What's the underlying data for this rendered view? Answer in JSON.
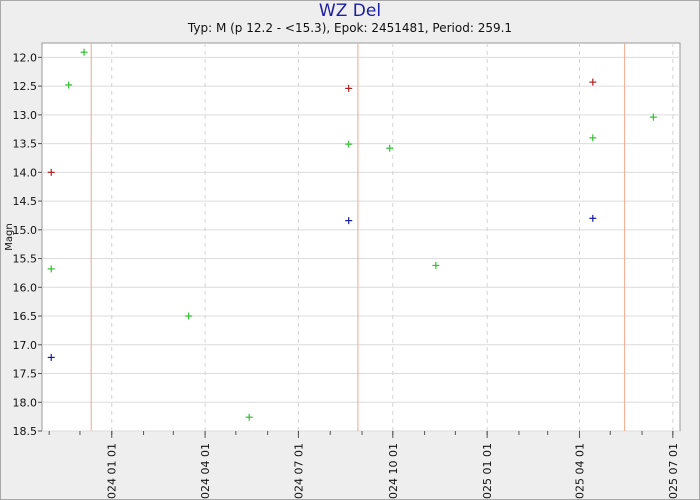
{
  "chart_data": {
    "type": "scatter",
    "title": "WZ Del",
    "subtitle": "Typ: M (p 12.2 - <15.3), Epok: 2451481, Period: 259.1",
    "ylabel": "Magn",
    "xlabel": "",
    "y_inverted": true,
    "ylim": [
      11.75,
      18.5
    ],
    "xlim": [
      "2023-10-25",
      "2025-07-08"
    ],
    "y_ticks": [
      "12.0",
      "12.5",
      "13.0",
      "13.5",
      "14.0",
      "14.5",
      "15.0",
      "15.5",
      "16.0",
      "16.5",
      "17.0",
      "17.5",
      "18.0",
      "18.5"
    ],
    "x_ticks": [
      {
        "date": "2024-01-01",
        "label": "2024 01 01"
      },
      {
        "date": "2024-04-01",
        "label": "2024 04 01"
      },
      {
        "date": "2024-07-01",
        "label": "2024 07 01"
      },
      {
        "date": "2024-10-01",
        "label": "2024 10 01"
      },
      {
        "date": "2025-01-01",
        "label": "2025 01 01"
      },
      {
        "date": "2025-04-01",
        "label": "2025 04 01"
      },
      {
        "date": "2025-07-01",
        "label": "2025 07 01"
      }
    ],
    "maxima_dates": [
      "2023-12-12",
      "2024-08-28",
      "2025-05-15"
    ],
    "series": [
      {
        "color": "#30c030",
        "points": [
          {
            "x": "2023-11-03",
            "y": 15.68
          },
          {
            "x": "2023-11-20",
            "y": 12.48
          },
          {
            "x": "2023-12-05",
            "y": 11.91
          },
          {
            "x": "2024-03-16",
            "y": 16.5
          },
          {
            "x": "2024-05-14",
            "y": 18.26
          },
          {
            "x": "2024-08-19",
            "y": 13.51
          },
          {
            "x": "2024-09-28",
            "y": 13.58
          },
          {
            "x": "2024-11-12",
            "y": 15.62
          },
          {
            "x": "2025-04-14",
            "y": 13.4
          },
          {
            "x": "2025-06-12",
            "y": 13.04
          }
        ]
      },
      {
        "color": "#b02020",
        "points": [
          {
            "x": "2023-11-03",
            "y": 14.0
          },
          {
            "x": "2024-08-19",
            "y": 12.54
          },
          {
            "x": "2025-04-14",
            "y": 12.43
          }
        ]
      },
      {
        "color": "#1a1aa0",
        "points": [
          {
            "x": "2023-11-03",
            "y": 17.22
          },
          {
            "x": "2024-08-19",
            "y": 14.84
          },
          {
            "x": "2025-04-14",
            "y": 14.8
          }
        ]
      }
    ]
  }
}
